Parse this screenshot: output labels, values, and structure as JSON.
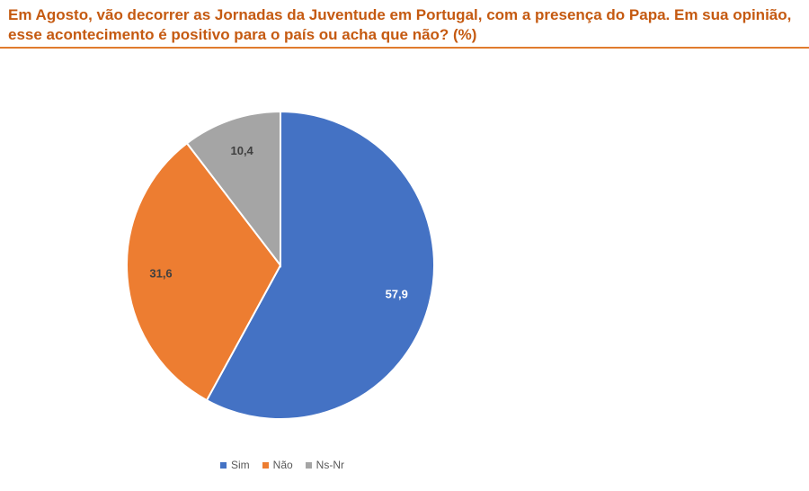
{
  "chart_data": {
    "type": "pie",
    "title": "Em Agosto, vão decorrer as Jornadas da Juventude em Portugal, com a presença do Papa. Em sua opinião, esse acontecimento é positivo para o país ou acha que não? (%)",
    "categories": [
      "Sim",
      "Não",
      "Ns-Nr"
    ],
    "values": [
      57.9,
      31.6,
      10.4
    ],
    "labels": [
      "57,9",
      "31,6",
      "10,4"
    ],
    "colors": [
      "#4472c4",
      "#ed7d31",
      "#a5a5a5"
    ],
    "label_colors": [
      "#ffffff",
      "#404040",
      "#404040"
    ],
    "legend_position": "bottom"
  }
}
